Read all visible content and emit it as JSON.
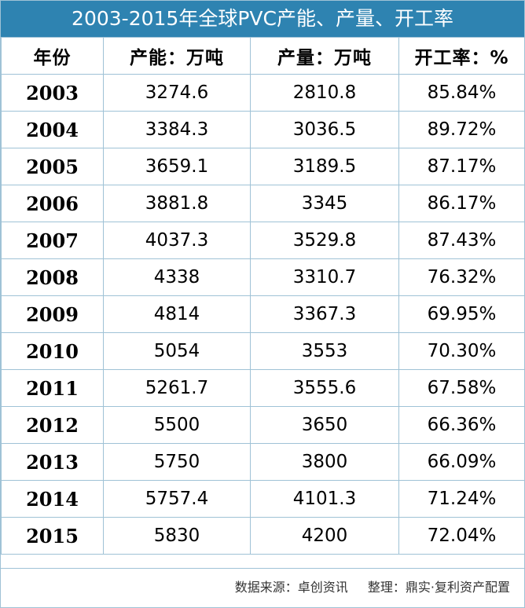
{
  "title": "2003-2015年全球PVC产能、产量、开工率",
  "headers": {
    "year": "年份",
    "capacity": "产能：万吨",
    "output": "产量：万吨",
    "rate": "开工率：%"
  },
  "rows": [
    {
      "year": "2003",
      "capacity": "3274.6",
      "output": "2810.8",
      "rate": "85.84%"
    },
    {
      "year": "2004",
      "capacity": "3384.3",
      "output": "3036.5",
      "rate": "89.72%"
    },
    {
      "year": "2005",
      "capacity": "3659.1",
      "output": "3189.5",
      "rate": "87.17%"
    },
    {
      "year": "2006",
      "capacity": "3881.8",
      "output": "3345",
      "rate": "86.17%"
    },
    {
      "year": "2007",
      "capacity": "4037.3",
      "output": "3529.8",
      "rate": "87.43%"
    },
    {
      "year": "2008",
      "capacity": "4338",
      "output": "3310.7",
      "rate": "76.32%"
    },
    {
      "year": "2009",
      "capacity": "4814",
      "output": "3367.3",
      "rate": "69.95%"
    },
    {
      "year": "2010",
      "capacity": "5054",
      "output": "3553",
      "rate": "70.30%"
    },
    {
      "year": "2011",
      "capacity": "5261.7",
      "output": "3555.6",
      "rate": "67.58%"
    },
    {
      "year": "2012",
      "capacity": "5500",
      "output": "3650",
      "rate": "66.36%"
    },
    {
      "year": "2013",
      "capacity": "5750",
      "output": "3800",
      "rate": "66.09%"
    },
    {
      "year": "2014",
      "capacity": "5757.4",
      "output": "4101.3",
      "rate": "71.24%"
    },
    {
      "year": "2015",
      "capacity": "5830",
      "output": "4200",
      "rate": "72.04%"
    }
  ],
  "footer": {
    "source": "数据来源：卓创资讯",
    "compiled": "整理：鼎实·复利资产配置"
  },
  "colors": {
    "title_bg": "#2e83b1",
    "title_text": "#ffffff",
    "grid_line": "#9fc2d6"
  }
}
